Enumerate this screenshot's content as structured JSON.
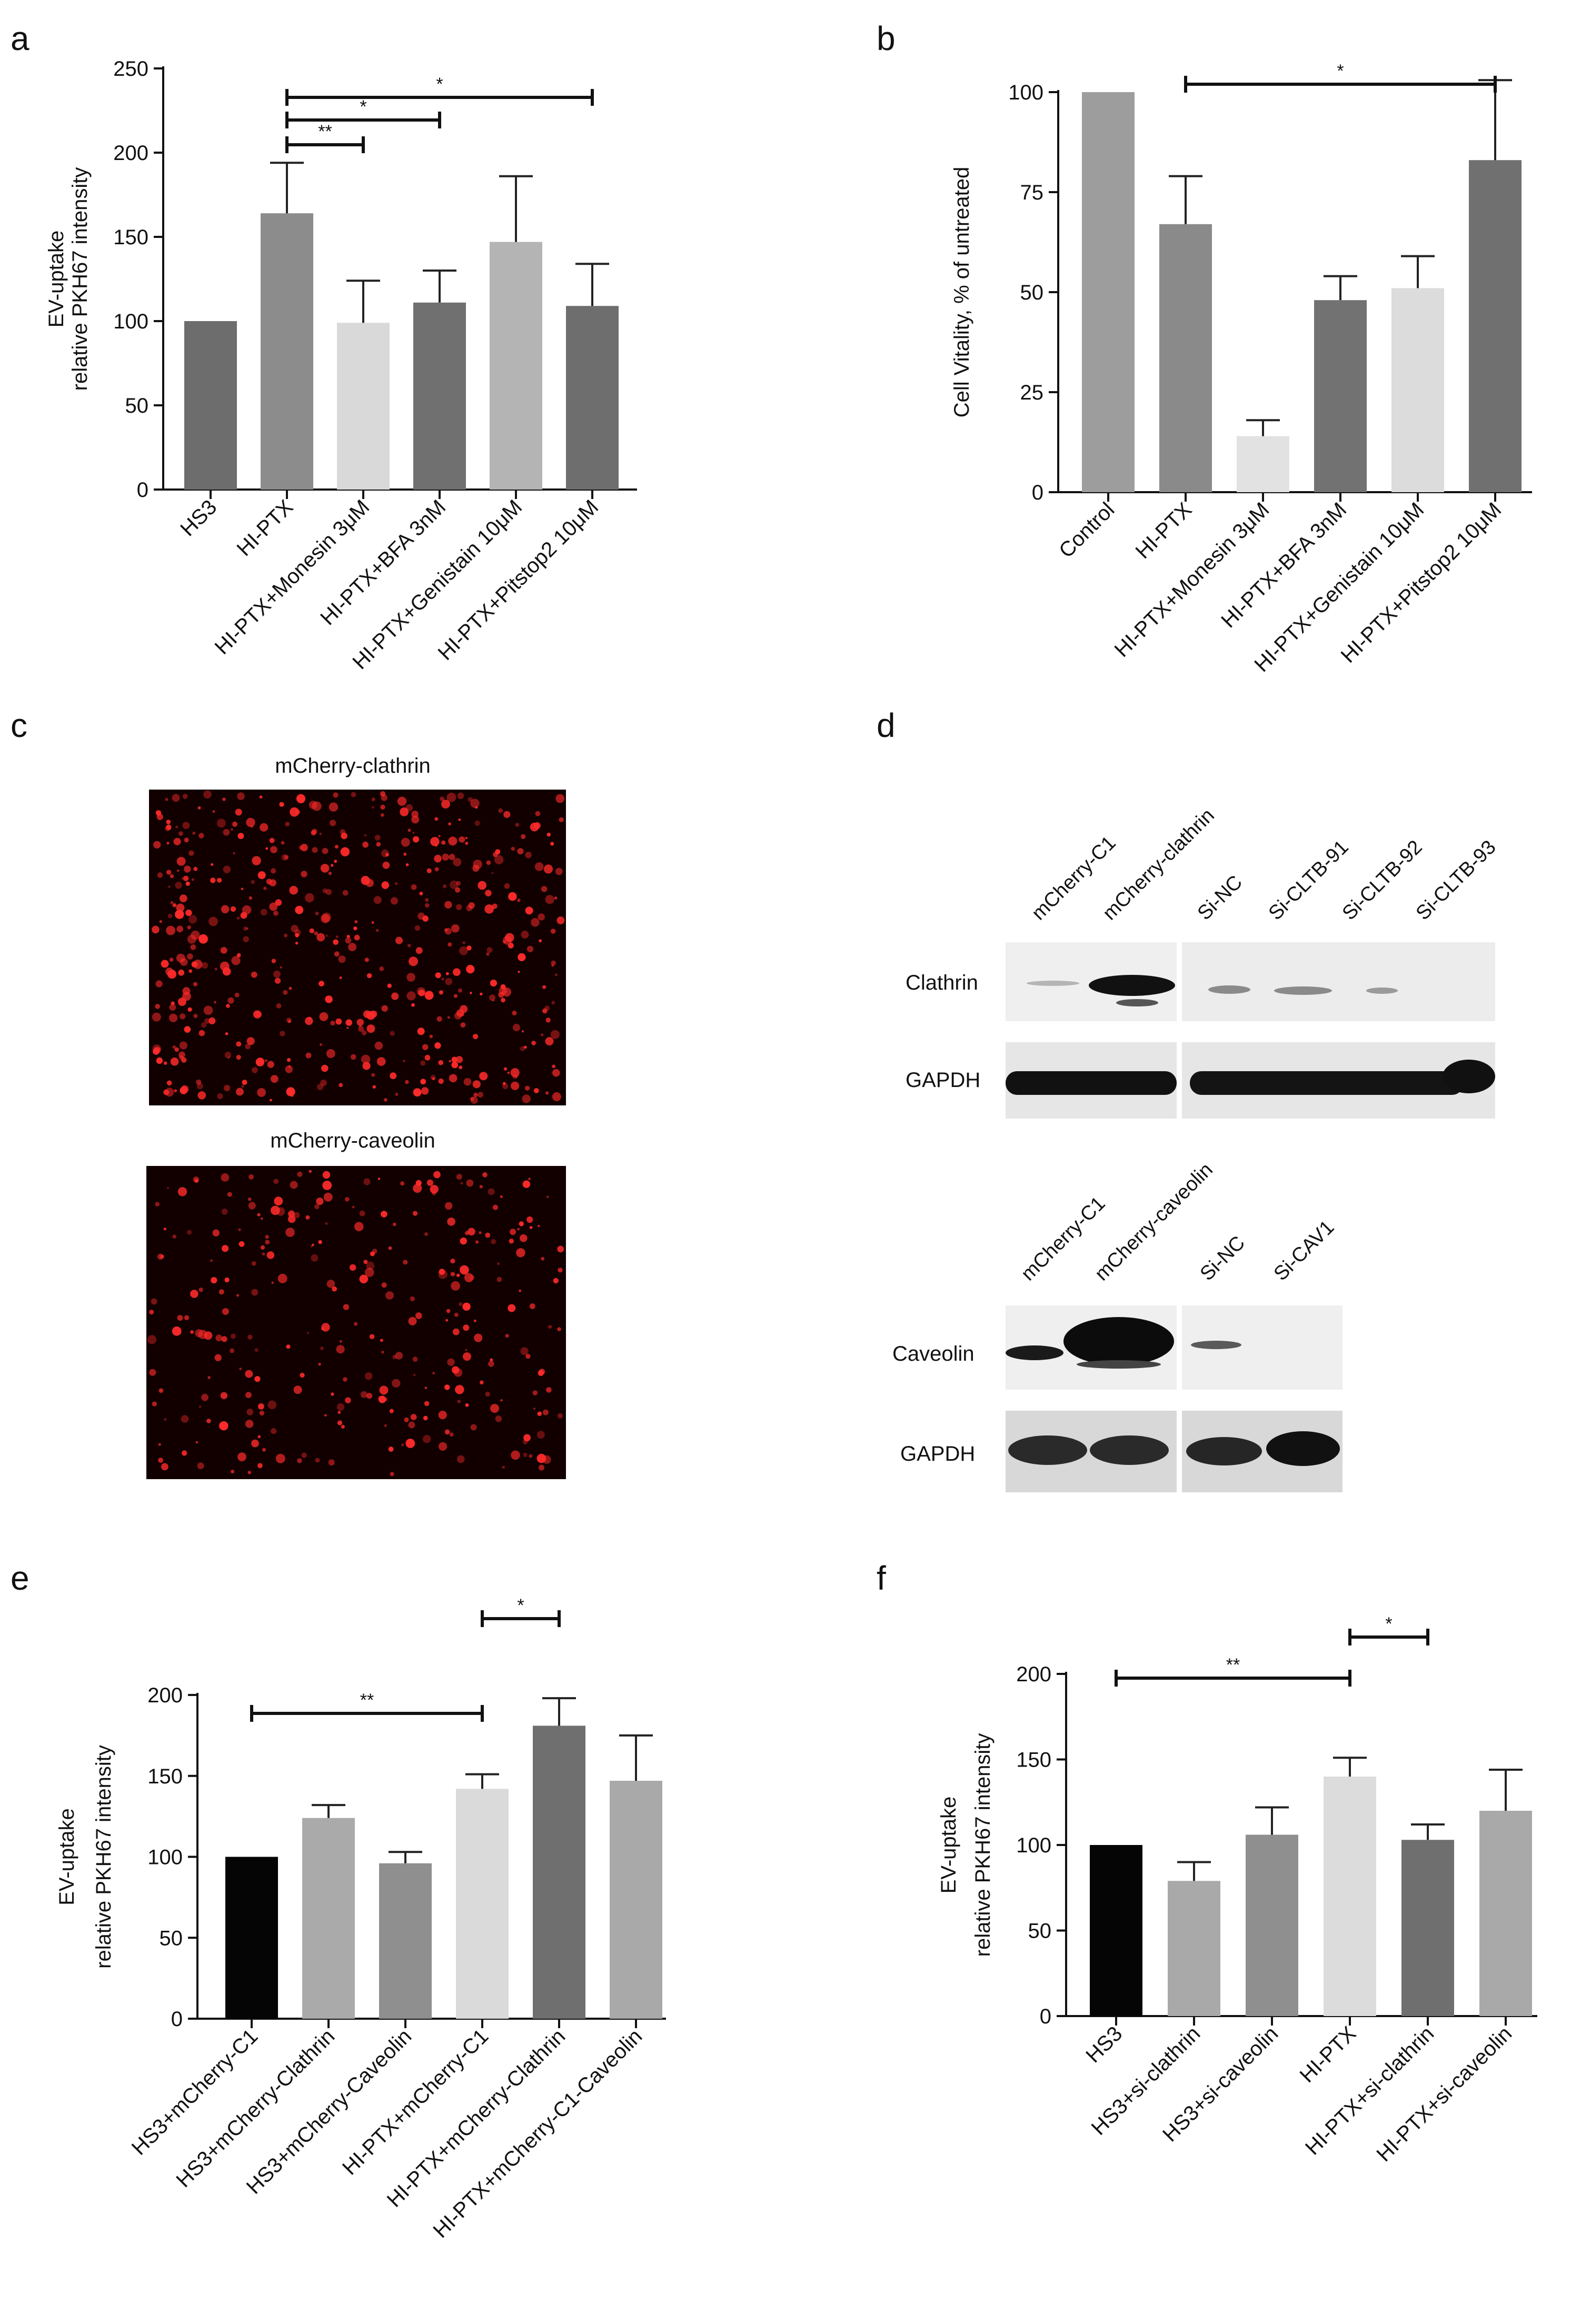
{
  "panels": {
    "a": "a",
    "b": "b",
    "c": "c",
    "d": "d",
    "e": "e",
    "f": "f"
  },
  "chart_data": [
    {
      "id": "a",
      "type": "bar",
      "ylabel": [
        "EV-uptake",
        "relative PKH67 intensity"
      ],
      "ylim": [
        0,
        250
      ],
      "yticks": [
        0,
        50,
        100,
        150,
        200,
        250
      ],
      "categories": [
        "HS3",
        "HI-PTX",
        "HI-PTX+Monesin 3μM",
        "HI-PTX+BFA 3nM",
        "HI-PTX+Genistain 10μM",
        "HI-PTX+Pitstop2 10μM"
      ],
      "values": [
        100,
        164,
        99,
        111,
        147,
        109
      ],
      "errors": [
        0,
        30,
        25,
        19,
        39,
        25
      ],
      "colors": [
        "#6d6d6d",
        "#8c8c8c",
        "#d9d9d9",
        "#707070",
        "#b4b4b4",
        "#6e6e6e"
      ],
      "significance": [
        {
          "from": 1,
          "to": 2,
          "label": "**"
        },
        {
          "from": 1,
          "to": 3,
          "label": "*"
        },
        {
          "from": 1,
          "to": 5,
          "label": "*"
        }
      ]
    },
    {
      "id": "b",
      "type": "bar",
      "ylabel": [
        "Cell Vitality, % of untreated"
      ],
      "ylim": [
        0,
        120
      ],
      "yticks": [
        0,
        25,
        50,
        75,
        100
      ],
      "categories": [
        "Control",
        "HI-PTX",
        "HI-PTX+Monesin 3μM",
        "HI-PTX+BFA 3nM",
        "HI-PTX+Genistain 10μM",
        "HI-PTX+Pitstop2 10μM"
      ],
      "values": [
        100,
        67,
        14,
        48,
        51,
        83
      ],
      "errors": [
        0,
        12,
        4,
        6,
        8,
        20
      ],
      "colors": [
        "#9d9d9d",
        "#8a8a8a",
        "#e2e2e2",
        "#727272",
        "#dcdcdc",
        "#707070"
      ],
      "significance": [
        {
          "from": 1,
          "to": 5,
          "label": "*"
        }
      ]
    },
    {
      "id": "e",
      "type": "bar",
      "ylabel": [
        "EV-uptake",
        "relative PKH67 intensity"
      ],
      "ylim": [
        0,
        210
      ],
      "yticks": [
        0,
        50,
        100,
        150,
        200
      ],
      "categories": [
        "HS3+mCherry-C1",
        "HS3+mCherry-Clathrin",
        "HS3+mCherry-Caveolin",
        "HI-PTX+mCherry-C1",
        "HI-PTX+mCherry-Clathrin",
        "HI-PTX+mCherry-C1-Caveolin"
      ],
      "values": [
        100,
        124,
        96,
        142,
        181,
        147
      ],
      "errors": [
        0,
        8,
        7,
        9,
        17,
        28
      ],
      "colors": [
        "#050505",
        "#aaaaaa",
        "#8f8f8f",
        "#dadada",
        "#6f6f6f",
        "#a9a9a9"
      ],
      "significance": [
        {
          "from": 0,
          "to": 3,
          "label": "**"
        },
        {
          "from": 3,
          "to": 4,
          "label": "*"
        }
      ]
    },
    {
      "id": "f",
      "type": "bar",
      "ylabel": [
        "EV-uptake",
        "relative PKH67 intensity"
      ],
      "ylim": [
        0,
        200
      ],
      "yticks": [
        0,
        50,
        100,
        150,
        200
      ],
      "categories": [
        "HS3",
        "HS3+si-clathrin",
        "HS3+si-caveolin",
        "HI-PTX",
        "HI-PTX+si-clathrin",
        "HI-PTX+si-caveolin"
      ],
      "values": [
        100,
        79,
        106,
        140,
        103,
        120
      ],
      "errors": [
        0,
        11,
        16,
        11,
        9,
        24
      ],
      "colors": [
        "#050505",
        "#a9a9a9",
        "#8f8f8f",
        "#dcdcdc",
        "#6f6f6f",
        "#a9a9a9"
      ],
      "significance": [
        {
          "from": 0,
          "to": 3,
          "label": "**"
        },
        {
          "from": 3,
          "to": 4,
          "label": "*"
        }
      ]
    }
  ],
  "micrographs": {
    "top_title": "mCherry-clathrin",
    "bottom_title": "mCherry-caveolin",
    "color": "#ff2a2a"
  },
  "blots": {
    "top": {
      "lanes": [
        "mCherry-C1",
        "mCherry-clathrin",
        "Si-NC",
        "Si-CLTB-91",
        "Si-CLTB-92",
        "Si-CLTB-93"
      ],
      "rows": [
        "Clathrin",
        "GAPDH"
      ]
    },
    "bottom": {
      "lanes": [
        "mCherry-C1",
        "mCherry-caveolin",
        "Si-NC",
        "Si-CAV1"
      ],
      "rows": [
        "Caveolin",
        "GAPDH"
      ]
    }
  }
}
